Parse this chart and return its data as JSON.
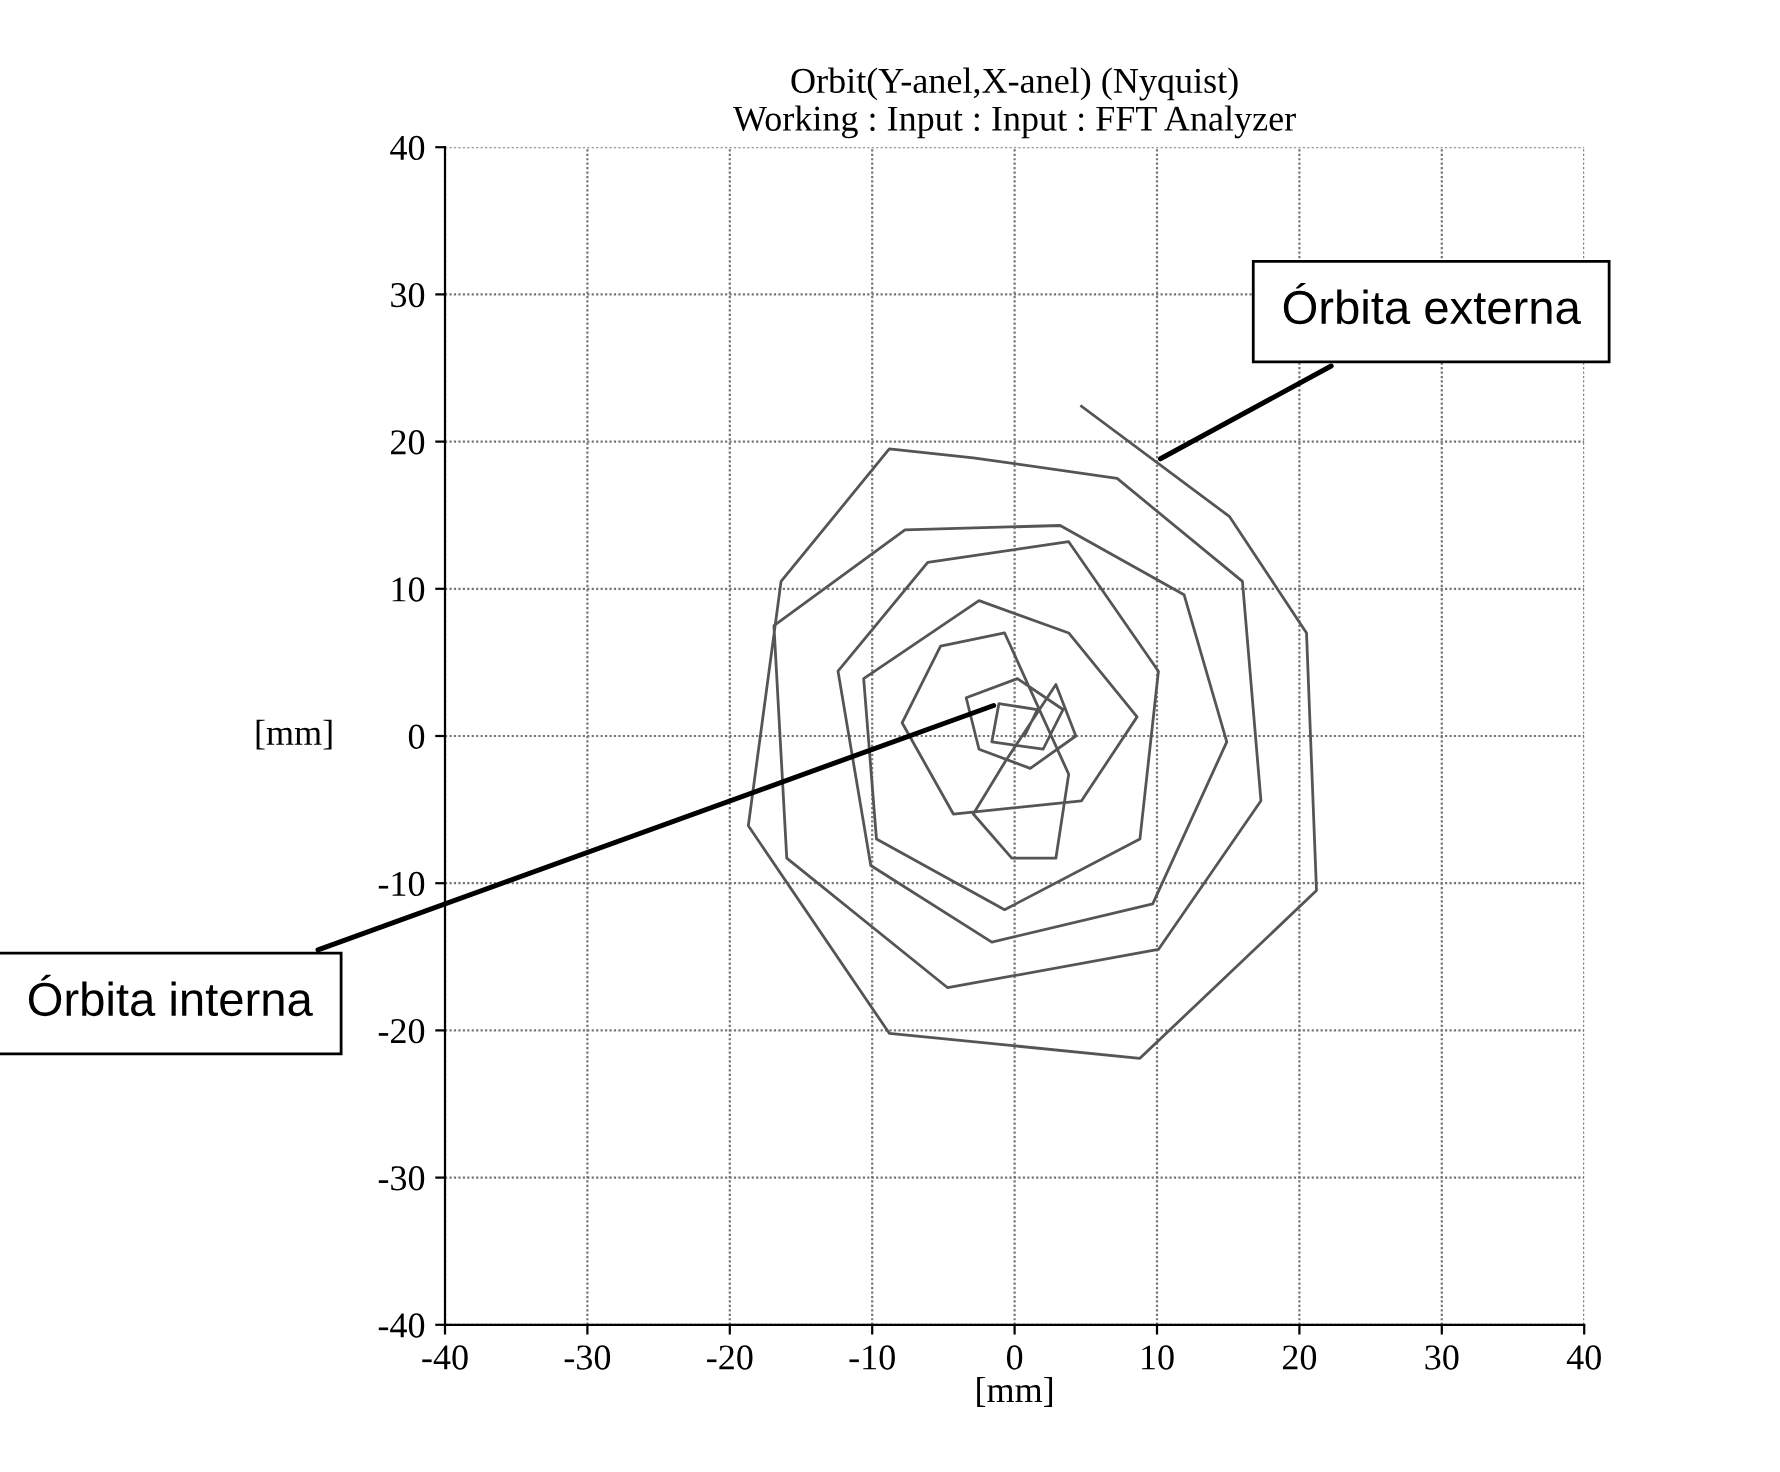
{
  "chart_data": {
    "type": "line",
    "title": "Orbit(Y-anel,X-anel) (Nyquist)",
    "subtitle": "Working : Input : Input : FFT Analyzer",
    "xlabel": "[mm]",
    "ylabel": "[mm]",
    "x": [
      4.7,
      15.1,
      20.5,
      21.2,
      8.8,
      -8.8,
      -18.7,
      -16.4,
      -8.8,
      -2.9,
      7.2,
      16.0,
      17.3,
      10.1,
      -4.7,
      -16.0,
      -16.9,
      -7.7,
      3.2,
      11.9,
      14.9,
      9.7,
      -1.6,
      -10.1,
      -12.4,
      -6.1,
      3.8,
      10.1,
      8.8,
      -0.7,
      -9.7,
      -10.6,
      -2.5,
      3.8,
      8.6,
      4.7,
      -4.3,
      -7.9,
      -5.2,
      -0.7,
      3.8,
      2.9,
      -0.2,
      -2.9,
      -0.7,
      2.9,
      4.3,
      1.1,
      -2.5,
      -3.4,
      0.2,
      3.4,
      2.0,
      -1.6,
      -1.1,
      1.6,
      0.7
    ],
    "series": [
      {
        "color": "#555555",
        "values": [
          22.4,
          14.9,
          7.0,
          -10.5,
          -21.9,
          -20.2,
          -6.1,
          10.5,
          19.5,
          18.9,
          17.5,
          10.5,
          -4.4,
          -14.5,
          -17.1,
          -8.3,
          7.5,
          14.0,
          14.3,
          9.6,
          -0.4,
          -11.4,
          -14.0,
          -8.8,
          4.4,
          11.8,
          13.2,
          4.4,
          -7.0,
          -11.8,
          -7.0,
          3.9,
          9.2,
          7.0,
          1.3,
          -4.4,
          -5.3,
          0.9,
          6.1,
          7.0,
          -2.6,
          -8.3,
          -8.3,
          -5.3,
          -1.8,
          3.5,
          0.0,
          -2.2,
          -0.9,
          2.6,
          3.9,
          1.8,
          -0.9,
          -0.4,
          2.2,
          1.8,
          0.0
        ]
      }
    ],
    "xlim": [
      -40,
      40
    ],
    "ylim": [
      -40,
      40
    ],
    "xticks": [
      -40,
      -30,
      -20,
      -10,
      0,
      10,
      20,
      30,
      40
    ],
    "yticks": [
      -40,
      -30,
      -20,
      -10,
      0,
      10,
      20,
      30,
      40
    ],
    "grid": true,
    "annotations": [
      {
        "text": "Órbita externa",
        "x": 9.9,
        "y": 18.65
      },
      {
        "text": "Órbita interna",
        "x": -1.1,
        "y": 2.2
      }
    ]
  }
}
